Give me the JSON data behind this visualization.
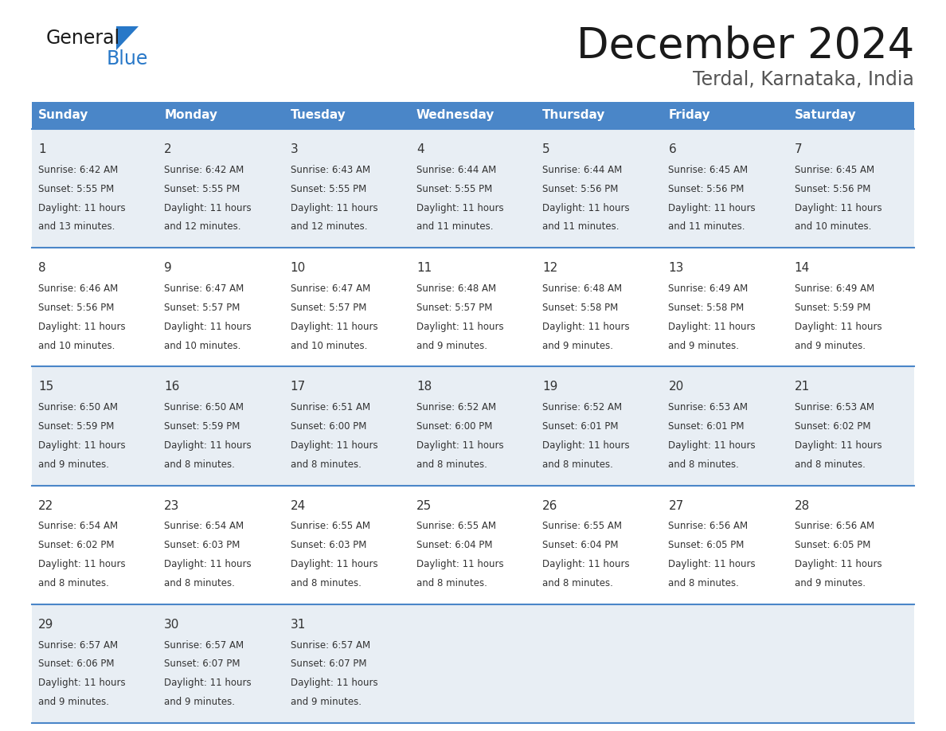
{
  "title": "December 2024",
  "subtitle": "Terdal, Karnataka, India",
  "days_of_week": [
    "Sunday",
    "Monday",
    "Tuesday",
    "Wednesday",
    "Thursday",
    "Friday",
    "Saturday"
  ],
  "header_bg": "#4a86c8",
  "header_text": "#ffffff",
  "row_bg_odd": "#e8eef4",
  "row_bg_even": "#ffffff",
  "cell_border": "#4a86c8",
  "text_color": "#333333",
  "calendar_data": [
    [
      {
        "day": 1,
        "sunrise": "6:42 AM",
        "sunset": "5:55 PM",
        "daylight": "11 hours and 13 minutes."
      },
      {
        "day": 2,
        "sunrise": "6:42 AM",
        "sunset": "5:55 PM",
        "daylight": "11 hours and 12 minutes."
      },
      {
        "day": 3,
        "sunrise": "6:43 AM",
        "sunset": "5:55 PM",
        "daylight": "11 hours and 12 minutes."
      },
      {
        "day": 4,
        "sunrise": "6:44 AM",
        "sunset": "5:55 PM",
        "daylight": "11 hours and 11 minutes."
      },
      {
        "day": 5,
        "sunrise": "6:44 AM",
        "sunset": "5:56 PM",
        "daylight": "11 hours and 11 minutes."
      },
      {
        "day": 6,
        "sunrise": "6:45 AM",
        "sunset": "5:56 PM",
        "daylight": "11 hours and 11 minutes."
      },
      {
        "day": 7,
        "sunrise": "6:45 AM",
        "sunset": "5:56 PM",
        "daylight": "11 hours and 10 minutes."
      }
    ],
    [
      {
        "day": 8,
        "sunrise": "6:46 AM",
        "sunset": "5:56 PM",
        "daylight": "11 hours and 10 minutes."
      },
      {
        "day": 9,
        "sunrise": "6:47 AM",
        "sunset": "5:57 PM",
        "daylight": "11 hours and 10 minutes."
      },
      {
        "day": 10,
        "sunrise": "6:47 AM",
        "sunset": "5:57 PM",
        "daylight": "11 hours and 10 minutes."
      },
      {
        "day": 11,
        "sunrise": "6:48 AM",
        "sunset": "5:57 PM",
        "daylight": "11 hours and 9 minutes."
      },
      {
        "day": 12,
        "sunrise": "6:48 AM",
        "sunset": "5:58 PM",
        "daylight": "11 hours and 9 minutes."
      },
      {
        "day": 13,
        "sunrise": "6:49 AM",
        "sunset": "5:58 PM",
        "daylight": "11 hours and 9 minutes."
      },
      {
        "day": 14,
        "sunrise": "6:49 AM",
        "sunset": "5:59 PM",
        "daylight": "11 hours and 9 minutes."
      }
    ],
    [
      {
        "day": 15,
        "sunrise": "6:50 AM",
        "sunset": "5:59 PM",
        "daylight": "11 hours and 9 minutes."
      },
      {
        "day": 16,
        "sunrise": "6:50 AM",
        "sunset": "5:59 PM",
        "daylight": "11 hours and 8 minutes."
      },
      {
        "day": 17,
        "sunrise": "6:51 AM",
        "sunset": "6:00 PM",
        "daylight": "11 hours and 8 minutes."
      },
      {
        "day": 18,
        "sunrise": "6:52 AM",
        "sunset": "6:00 PM",
        "daylight": "11 hours and 8 minutes."
      },
      {
        "day": 19,
        "sunrise": "6:52 AM",
        "sunset": "6:01 PM",
        "daylight": "11 hours and 8 minutes."
      },
      {
        "day": 20,
        "sunrise": "6:53 AM",
        "sunset": "6:01 PM",
        "daylight": "11 hours and 8 minutes."
      },
      {
        "day": 21,
        "sunrise": "6:53 AM",
        "sunset": "6:02 PM",
        "daylight": "11 hours and 8 minutes."
      }
    ],
    [
      {
        "day": 22,
        "sunrise": "6:54 AM",
        "sunset": "6:02 PM",
        "daylight": "11 hours and 8 minutes."
      },
      {
        "day": 23,
        "sunrise": "6:54 AM",
        "sunset": "6:03 PM",
        "daylight": "11 hours and 8 minutes."
      },
      {
        "day": 24,
        "sunrise": "6:55 AM",
        "sunset": "6:03 PM",
        "daylight": "11 hours and 8 minutes."
      },
      {
        "day": 25,
        "sunrise": "6:55 AM",
        "sunset": "6:04 PM",
        "daylight": "11 hours and 8 minutes."
      },
      {
        "day": 26,
        "sunrise": "6:55 AM",
        "sunset": "6:04 PM",
        "daylight": "11 hours and 8 minutes."
      },
      {
        "day": 27,
        "sunrise": "6:56 AM",
        "sunset": "6:05 PM",
        "daylight": "11 hours and 8 minutes."
      },
      {
        "day": 28,
        "sunrise": "6:56 AM",
        "sunset": "6:05 PM",
        "daylight": "11 hours and 9 minutes."
      }
    ],
    [
      {
        "day": 29,
        "sunrise": "6:57 AM",
        "sunset": "6:06 PM",
        "daylight": "11 hours and 9 minutes."
      },
      {
        "day": 30,
        "sunrise": "6:57 AM",
        "sunset": "6:07 PM",
        "daylight": "11 hours and 9 minutes."
      },
      {
        "day": 31,
        "sunrise": "6:57 AM",
        "sunset": "6:07 PM",
        "daylight": "11 hours and 9 minutes."
      },
      null,
      null,
      null,
      null
    ]
  ],
  "logo_text1": "General",
  "logo_text2": "Blue",
  "logo_color1": "#1a1a1a",
  "logo_color2": "#2878c8",
  "logo_triangle_color": "#2878c8"
}
